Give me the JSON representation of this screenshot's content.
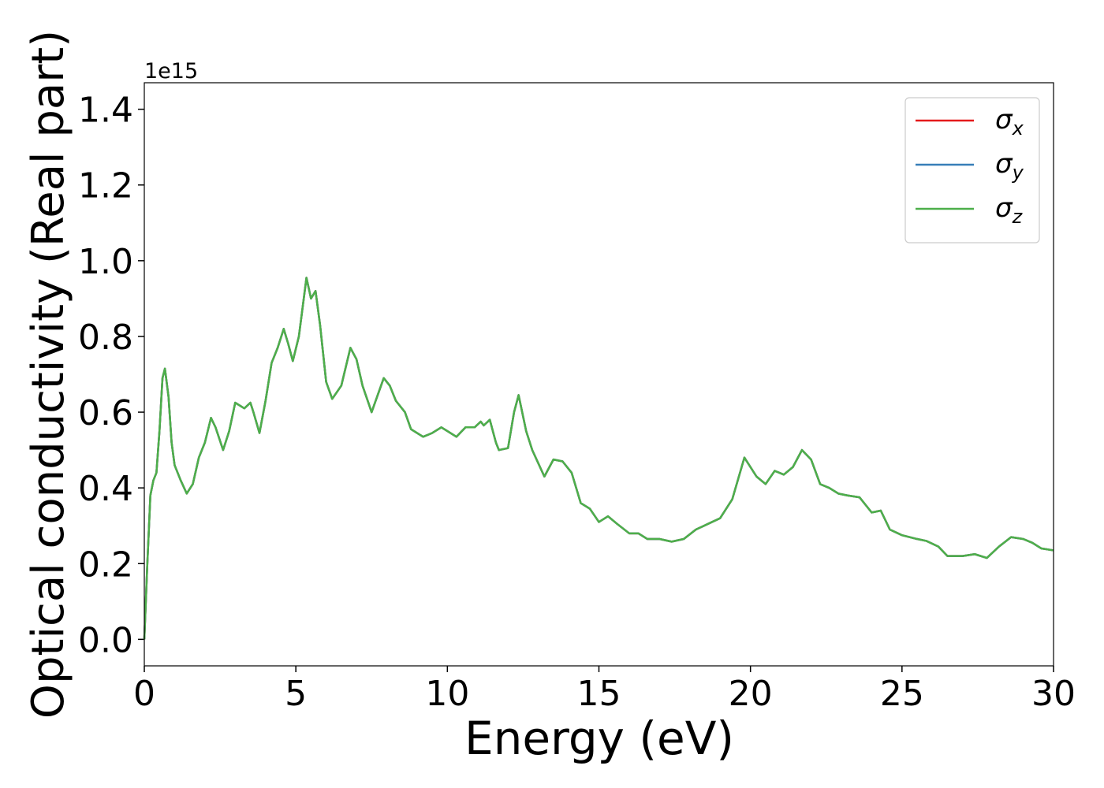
{
  "chart_data": {
    "type": "line",
    "xlabel": "Energy (eV)",
    "ylabel": "Optical conductivity (Real part)",
    "y_offset_label": "1e15",
    "xlim": [
      0,
      30
    ],
    "ylim": [
      -0.07,
      1.47
    ],
    "xticks": [
      0,
      5,
      10,
      15,
      20,
      25,
      30
    ],
    "yticks": [
      {
        "value": 0,
        "label": "0.0"
      },
      0.2,
      0.4,
      0.6,
      0.8,
      {
        "value": 1,
        "label": "1.0"
      },
      1.2,
      1.4
    ],
    "legend": "upper right",
    "x": [
      0,
      0.1,
      0.2,
      0.3,
      0.4,
      0.5,
      0.6,
      0.68,
      0.8,
      0.9,
      1.0,
      1.2,
      1.4,
      1.6,
      1.8,
      2.0,
      2.2,
      2.35,
      2.6,
      2.8,
      3.0,
      3.2,
      3.3,
      3.5,
      3.6,
      3.8,
      4.0,
      4.2,
      4.4,
      4.6,
      4.75,
      4.9,
      5.1,
      5.35,
      5.5,
      5.65,
      5.8,
      6.0,
      6.2,
      6.5,
      6.8,
      7.0,
      7.2,
      7.5,
      7.9,
      8.1,
      8.3,
      8.6,
      8.8,
      9.2,
      9.5,
      9.8,
      10.0,
      10.3,
      10.6,
      10.9,
      11.1,
      11.2,
      11.4,
      11.6,
      11.7,
      12.0,
      12.2,
      12.35,
      12.6,
      12.8,
      13.2,
      13.5,
      13.8,
      14.1,
      14.4,
      14.7,
      15.0,
      15.3,
      15.6,
      16.0,
      16.3,
      16.6,
      17.0,
      17.4,
      17.8,
      18.2,
      18.6,
      19.0,
      19.4,
      19.8,
      20.2,
      20.5,
      20.8,
      21.1,
      21.4,
      21.7,
      22.0,
      22.3,
      22.6,
      22.9,
      23.2,
      23.6,
      24.0,
      24.3,
      24.6,
      25.0,
      25.5,
      25.8,
      26.2,
      26.5,
      27.0,
      27.4,
      27.8,
      28.2,
      28.6,
      29.0,
      29.3,
      29.6,
      30.0
    ],
    "series": [
      {
        "name": "σx",
        "color": "#e41a1c",
        "values": [
          0,
          0.2,
          0.38,
          0.42,
          0.44,
          0.55,
          0.69,
          0.715,
          0.64,
          0.52,
          0.46,
          0.42,
          0.385,
          0.41,
          0.48,
          0.52,
          0.585,
          0.56,
          0.5,
          0.55,
          0.625,
          0.615,
          0.61,
          0.625,
          0.6,
          0.545,
          0.63,
          0.73,
          0.77,
          0.82,
          0.78,
          0.735,
          0.8,
          0.955,
          0.9,
          0.92,
          0.83,
          0.68,
          0.635,
          0.67,
          0.77,
          0.74,
          0.67,
          0.6,
          0.69,
          0.67,
          0.63,
          0.6,
          0.555,
          0.535,
          0.545,
          0.56,
          0.55,
          0.535,
          0.56,
          0.56,
          0.575,
          0.565,
          0.58,
          0.52,
          0.5,
          0.505,
          0.6,
          0.645,
          0.55,
          0.5,
          0.43,
          0.475,
          0.47,
          0.44,
          0.36,
          0.345,
          0.31,
          0.325,
          0.305,
          0.28,
          0.28,
          0.265,
          0.265,
          0.258,
          0.265,
          0.29,
          0.305,
          0.32,
          0.37,
          0.48,
          0.43,
          0.41,
          0.445,
          0.435,
          0.455,
          0.5,
          0.475,
          0.41,
          0.4,
          0.385,
          0.38,
          0.375,
          0.335,
          0.34,
          0.29,
          0.275,
          0.265,
          0.26,
          0.245,
          0.22,
          0.22,
          0.225,
          0.215,
          0.245,
          0.27,
          0.265,
          0.255,
          0.24,
          0.235
        ]
      },
      {
        "name": "σy",
        "color": "#377eb8",
        "values": [
          0,
          0.2,
          0.38,
          0.42,
          0.44,
          0.55,
          0.69,
          0.715,
          0.64,
          0.52,
          0.46,
          0.42,
          0.385,
          0.41,
          0.48,
          0.52,
          0.585,
          0.56,
          0.5,
          0.55,
          0.625,
          0.615,
          0.61,
          0.625,
          0.6,
          0.545,
          0.63,
          0.73,
          0.77,
          0.82,
          0.78,
          0.735,
          0.8,
          0.955,
          0.9,
          0.92,
          0.83,
          0.68,
          0.635,
          0.67,
          0.77,
          0.74,
          0.67,
          0.6,
          0.69,
          0.67,
          0.63,
          0.6,
          0.555,
          0.535,
          0.545,
          0.56,
          0.55,
          0.535,
          0.56,
          0.56,
          0.575,
          0.565,
          0.58,
          0.52,
          0.5,
          0.505,
          0.6,
          0.645,
          0.55,
          0.5,
          0.43,
          0.475,
          0.47,
          0.44,
          0.36,
          0.345,
          0.31,
          0.325,
          0.305,
          0.28,
          0.28,
          0.265,
          0.265,
          0.258,
          0.265,
          0.29,
          0.305,
          0.32,
          0.37,
          0.48,
          0.43,
          0.41,
          0.445,
          0.435,
          0.455,
          0.5,
          0.475,
          0.41,
          0.4,
          0.385,
          0.38,
          0.375,
          0.335,
          0.34,
          0.29,
          0.275,
          0.265,
          0.26,
          0.245,
          0.22,
          0.22,
          0.225,
          0.215,
          0.245,
          0.27,
          0.265,
          0.255,
          0.24,
          0.235
        ]
      },
      {
        "name": "σz",
        "color": "#4daf4a",
        "values": [
          0,
          0.2,
          0.38,
          0.42,
          0.44,
          0.55,
          0.69,
          0.715,
          0.64,
          0.52,
          0.46,
          0.42,
          0.385,
          0.41,
          0.48,
          0.52,
          0.585,
          0.56,
          0.5,
          0.55,
          0.625,
          0.615,
          0.61,
          0.625,
          0.6,
          0.545,
          0.63,
          0.73,
          0.77,
          0.82,
          0.78,
          0.735,
          0.8,
          0.955,
          0.9,
          0.92,
          0.83,
          0.68,
          0.635,
          0.67,
          0.77,
          0.74,
          0.67,
          0.6,
          0.69,
          0.67,
          0.63,
          0.6,
          0.555,
          0.535,
          0.545,
          0.56,
          0.55,
          0.535,
          0.56,
          0.56,
          0.575,
          0.565,
          0.58,
          0.52,
          0.5,
          0.505,
          0.6,
          0.645,
          0.55,
          0.5,
          0.43,
          0.475,
          0.47,
          0.44,
          0.36,
          0.345,
          0.31,
          0.325,
          0.305,
          0.28,
          0.28,
          0.265,
          0.265,
          0.258,
          0.265,
          0.29,
          0.305,
          0.32,
          0.37,
          0.48,
          0.43,
          0.41,
          0.445,
          0.435,
          0.455,
          0.5,
          0.475,
          0.41,
          0.4,
          0.385,
          0.38,
          0.375,
          0.335,
          0.34,
          0.29,
          0.275,
          0.265,
          0.26,
          0.245,
          0.22,
          0.22,
          0.225,
          0.215,
          0.245,
          0.27,
          0.265,
          0.255,
          0.24,
          0.235
        ]
      }
    ]
  }
}
